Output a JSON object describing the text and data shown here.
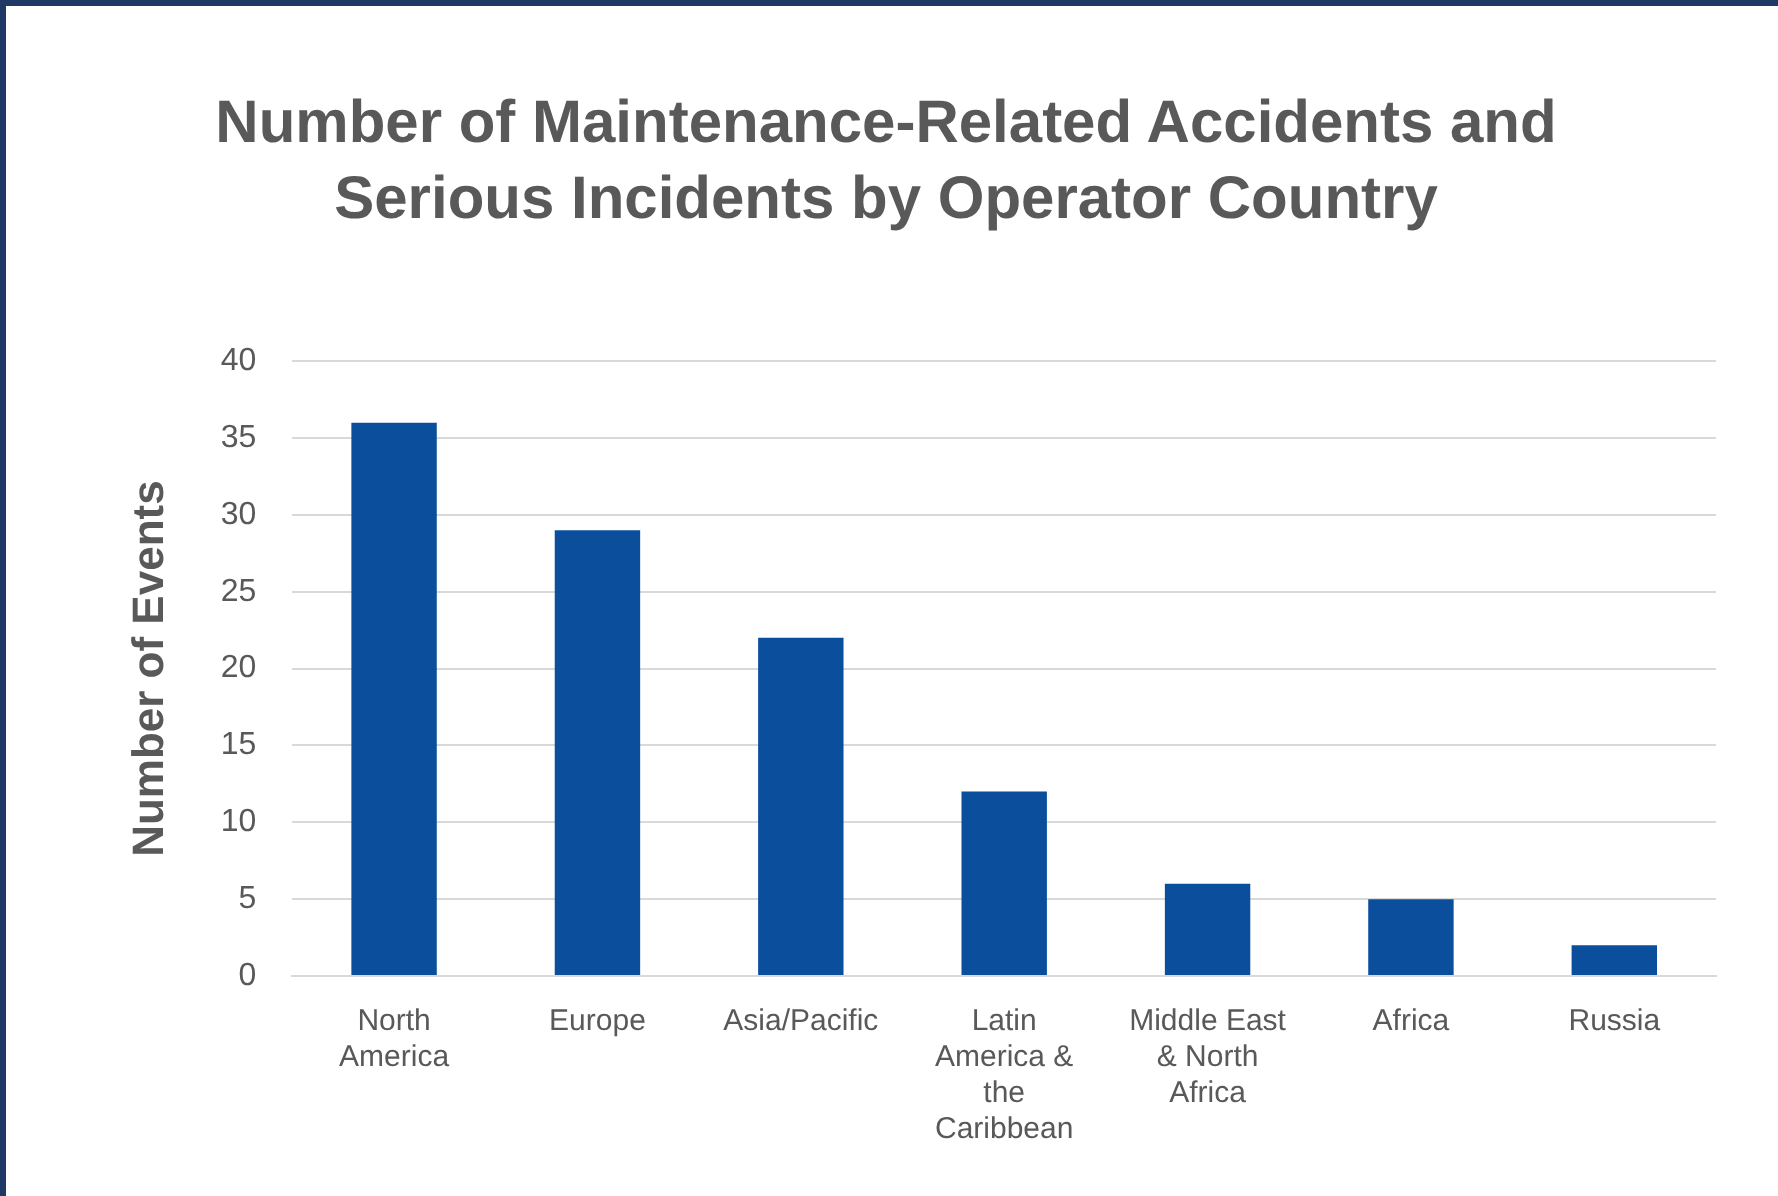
{
  "chart_data": {
    "type": "bar",
    "title": "Number of Maintenance-Related Accidents and Serious Incidents by Operator Country",
    "ylabel": "Number of Events",
    "categories": [
      "North America",
      "Europe",
      "Asia/Pacific",
      "Latin America & the Caribbean",
      "Middle East & North Africa",
      "Africa",
      "Russia"
    ],
    "values": [
      36,
      29,
      22,
      12,
      6,
      5,
      2
    ],
    "color": "#0b4f9c",
    "ylim": [
      0,
      40
    ],
    "yticks": [
      0,
      5,
      10,
      15,
      20,
      25,
      30,
      35,
      40
    ],
    "grid": "y",
    "legend": false
  }
}
